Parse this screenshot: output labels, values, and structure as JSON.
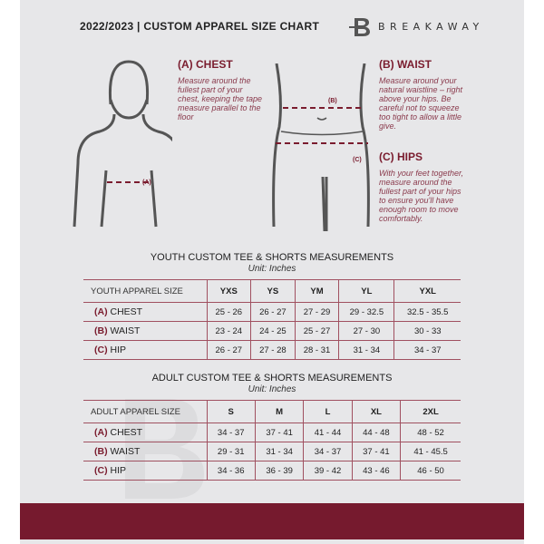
{
  "header": {
    "title": "2022/2023  |  CUSTOM APPAREL SIZE CHART",
    "brand": "BREAKAWAY"
  },
  "guide": {
    "chest": {
      "title": "(A) CHEST",
      "text": "Measure around the fullest part of your chest, keeping the tape measure parallel to the floor",
      "tag": "(A)"
    },
    "waist": {
      "title": "(B) WAIST",
      "text": "Measure around your natural waistline – right above your hips. Be careful not to squeeze too tight to allow a little give.",
      "tag": "(B)"
    },
    "hips": {
      "title": "(C) HIPS",
      "text": "With your feet together, measure around the fullest part of your hips to ensure you'll have enough room to move comfortably.",
      "tag": "(C)"
    }
  },
  "youth": {
    "title": "YOUTH CUSTOM TEE & SHORTS MEASUREMENTS",
    "unit": "Unit: Inches",
    "header": [
      "YOUTH APPAREL SIZE",
      "YXS",
      "YS",
      "YM",
      "YL",
      "YXL"
    ],
    "rows": [
      {
        "letter": "(A)",
        "label": "CHEST",
        "values": [
          "25 - 26",
          "26 - 27",
          "27 - 29",
          "29 - 32.5",
          "32.5 - 35.5"
        ]
      },
      {
        "letter": "(B)",
        "label": "WAIST",
        "values": [
          "23 - 24",
          "24 - 25",
          "25 - 27",
          "27 - 30",
          "30 - 33"
        ]
      },
      {
        "letter": "(C)",
        "label": "HIP",
        "values": [
          "26 - 27",
          "27 - 28",
          "28 - 31",
          "31 - 34",
          "34 - 37"
        ]
      }
    ]
  },
  "adult": {
    "title": "ADULT CUSTOM TEE & SHORTS MEASUREMENTS",
    "unit": "Unit: Inches",
    "header": [
      "ADULT APPAREL SIZE",
      "S",
      "M",
      "L",
      "XL",
      "2XL"
    ],
    "rows": [
      {
        "letter": "(A)",
        "label": "CHEST",
        "values": [
          "34 - 37",
          "37 - 41",
          "41 - 44",
          "44 - 48",
          "48 - 52"
        ]
      },
      {
        "letter": "(B)",
        "label": "WAIST",
        "values": [
          "29 - 31",
          "31 - 34",
          "34 - 37",
          "37 - 41",
          "41 - 45.5"
        ]
      },
      {
        "letter": "(C)",
        "label": "HIP",
        "values": [
          "34 - 36",
          "36 - 39",
          "39 - 42",
          "43 - 46",
          "46 - 50"
        ]
      }
    ]
  },
  "colors": {
    "accent": "#7a1c2e",
    "background": "#e7e7e9"
  }
}
